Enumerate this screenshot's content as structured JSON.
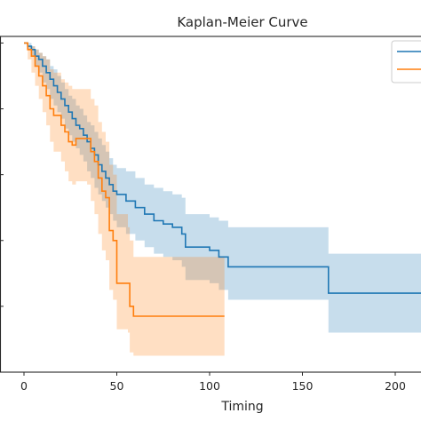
{
  "chart_data": {
    "type": "line",
    "title": "Kaplan-Meier Curve",
    "xlabel": "Timing",
    "ylabel": "",
    "xlim": [
      -12,
      218
    ],
    "ylim": [
      0,
      1.02
    ],
    "x_ticks": [
      0,
      50,
      100,
      150,
      200
    ],
    "x_tick_labels": [
      "0",
      "50",
      "100",
      "150",
      "200"
    ],
    "y_ticks": [
      0.2,
      0.4,
      0.6,
      0.8,
      1.0
    ],
    "grid": false,
    "legend_placement": "top-right",
    "series": [
      {
        "color": "#1f77b4",
        "fill": "#1f77b4",
        "steps": [
          [
            0,
            1.0
          ],
          [
            2,
            0.99
          ],
          [
            4,
            0.98
          ],
          [
            6,
            0.96
          ],
          [
            8,
            0.95
          ],
          [
            10,
            0.93
          ],
          [
            12,
            0.91
          ],
          [
            14,
            0.89
          ],
          [
            16,
            0.87
          ],
          [
            18,
            0.85
          ],
          [
            20,
            0.83
          ],
          [
            22,
            0.81
          ],
          [
            24,
            0.79
          ],
          [
            26,
            0.77
          ],
          [
            28,
            0.75
          ],
          [
            30,
            0.74
          ],
          [
            32,
            0.72
          ],
          [
            34,
            0.7
          ],
          [
            36,
            0.68
          ],
          [
            38,
            0.66
          ],
          [
            40,
            0.63
          ],
          [
            42,
            0.61
          ],
          [
            44,
            0.59
          ],
          [
            46,
            0.57
          ],
          [
            48,
            0.55
          ],
          [
            50,
            0.54
          ],
          [
            55,
            0.52
          ],
          [
            60,
            0.5
          ],
          [
            65,
            0.48
          ],
          [
            70,
            0.46
          ],
          [
            75,
            0.45
          ],
          [
            80,
            0.44
          ],
          [
            85,
            0.42
          ],
          [
            87,
            0.38
          ],
          [
            100,
            0.37
          ],
          [
            105,
            0.35
          ],
          [
            110,
            0.32
          ],
          [
            163,
            0.32
          ],
          [
            164,
            0.24
          ],
          [
            218,
            0.24
          ]
        ],
        "lower": [
          [
            0,
            1.0
          ],
          [
            2,
            0.98
          ],
          [
            4,
            0.96
          ],
          [
            6,
            0.93
          ],
          [
            8,
            0.91
          ],
          [
            10,
            0.88
          ],
          [
            12,
            0.86
          ],
          [
            14,
            0.83
          ],
          [
            16,
            0.81
          ],
          [
            18,
            0.79
          ],
          [
            20,
            0.77
          ],
          [
            22,
            0.74
          ],
          [
            24,
            0.72
          ],
          [
            26,
            0.7
          ],
          [
            28,
            0.68
          ],
          [
            30,
            0.66
          ],
          [
            32,
            0.64
          ],
          [
            34,
            0.61
          ],
          [
            36,
            0.59
          ],
          [
            38,
            0.56
          ],
          [
            40,
            0.54
          ],
          [
            42,
            0.52
          ],
          [
            44,
            0.5
          ],
          [
            46,
            0.48
          ],
          [
            48,
            0.46
          ],
          [
            50,
            0.44
          ],
          [
            55,
            0.42
          ],
          [
            60,
            0.4
          ],
          [
            65,
            0.38
          ],
          [
            70,
            0.36
          ],
          [
            75,
            0.35
          ],
          [
            80,
            0.34
          ],
          [
            85,
            0.32
          ],
          [
            87,
            0.28
          ],
          [
            100,
            0.27
          ],
          [
            105,
            0.25
          ],
          [
            110,
            0.22
          ],
          [
            163,
            0.22
          ],
          [
            164,
            0.12
          ],
          [
            218,
            0.12
          ]
        ],
        "upper": [
          [
            0,
            1.0
          ],
          [
            2,
            1.0
          ],
          [
            4,
            0.99
          ],
          [
            6,
            0.98
          ],
          [
            8,
            0.97
          ],
          [
            10,
            0.96
          ],
          [
            12,
            0.95
          ],
          [
            14,
            0.93
          ],
          [
            16,
            0.92
          ],
          [
            18,
            0.9
          ],
          [
            20,
            0.88
          ],
          [
            22,
            0.86
          ],
          [
            24,
            0.84
          ],
          [
            26,
            0.83
          ],
          [
            28,
            0.81
          ],
          [
            30,
            0.8
          ],
          [
            32,
            0.78
          ],
          [
            34,
            0.76
          ],
          [
            36,
            0.75
          ],
          [
            38,
            0.73
          ],
          [
            40,
            0.71
          ],
          [
            42,
            0.69
          ],
          [
            44,
            0.67
          ],
          [
            46,
            0.65
          ],
          [
            48,
            0.63
          ],
          [
            50,
            0.62
          ],
          [
            55,
            0.61
          ],
          [
            60,
            0.59
          ],
          [
            65,
            0.57
          ],
          [
            70,
            0.56
          ],
          [
            75,
            0.55
          ],
          [
            80,
            0.54
          ],
          [
            85,
            0.53
          ],
          [
            87,
            0.48
          ],
          [
            100,
            0.47
          ],
          [
            105,
            0.46
          ],
          [
            110,
            0.44
          ],
          [
            163,
            0.44
          ],
          [
            164,
            0.36
          ],
          [
            218,
            0.36
          ]
        ]
      },
      {
        "color": "#ff7f0e",
        "fill": "#ff7f0e",
        "steps": [
          [
            0,
            1.0
          ],
          [
            2,
            0.98
          ],
          [
            4,
            0.96
          ],
          [
            6,
            0.93
          ],
          [
            8,
            0.9
          ],
          [
            10,
            0.87
          ],
          [
            12,
            0.84
          ],
          [
            14,
            0.8
          ],
          [
            16,
            0.78
          ],
          [
            20,
            0.75
          ],
          [
            22,
            0.73
          ],
          [
            24,
            0.7
          ],
          [
            26,
            0.69
          ],
          [
            28,
            0.71
          ],
          [
            34,
            0.71
          ],
          [
            36,
            0.67
          ],
          [
            38,
            0.64
          ],
          [
            40,
            0.59
          ],
          [
            42,
            0.55
          ],
          [
            44,
            0.53
          ],
          [
            46,
            0.43
          ],
          [
            48,
            0.4
          ],
          [
            50,
            0.27
          ],
          [
            56,
            0.27
          ],
          [
            57,
            0.2
          ],
          [
            59,
            0.17
          ],
          [
            108,
            0.17
          ]
        ],
        "lower": [
          [
            0,
            1.0
          ],
          [
            2,
            0.95
          ],
          [
            4,
            0.91
          ],
          [
            6,
            0.87
          ],
          [
            8,
            0.83
          ],
          [
            10,
            0.79
          ],
          [
            12,
            0.75
          ],
          [
            14,
            0.7
          ],
          [
            16,
            0.67
          ],
          [
            20,
            0.64
          ],
          [
            22,
            0.61
          ],
          [
            24,
            0.58
          ],
          [
            26,
            0.57
          ],
          [
            28,
            0.58
          ],
          [
            34,
            0.57
          ],
          [
            36,
            0.52
          ],
          [
            38,
            0.48
          ],
          [
            40,
            0.42
          ],
          [
            42,
            0.37
          ],
          [
            44,
            0.34
          ],
          [
            46,
            0.25
          ],
          [
            48,
            0.22
          ],
          [
            50,
            0.13
          ],
          [
            56,
            0.12
          ],
          [
            57,
            0.06
          ],
          [
            59,
            0.05
          ],
          [
            108,
            0.05
          ]
        ],
        "upper": [
          [
            0,
            1.0
          ],
          [
            2,
            0.99
          ],
          [
            4,
            0.99
          ],
          [
            6,
            0.98
          ],
          [
            8,
            0.97
          ],
          [
            10,
            0.96
          ],
          [
            12,
            0.95
          ],
          [
            14,
            0.92
          ],
          [
            16,
            0.91
          ],
          [
            20,
            0.89
          ],
          [
            22,
            0.88
          ],
          [
            24,
            0.87
          ],
          [
            26,
            0.86
          ],
          [
            28,
            0.86
          ],
          [
            34,
            0.86
          ],
          [
            36,
            0.83
          ],
          [
            38,
            0.81
          ],
          [
            40,
            0.76
          ],
          [
            42,
            0.73
          ],
          [
            44,
            0.7
          ],
          [
            46,
            0.63
          ],
          [
            48,
            0.6
          ],
          [
            50,
            0.48
          ],
          [
            56,
            0.44
          ],
          [
            57,
            0.4
          ],
          [
            59,
            0.35
          ],
          [
            108,
            0.35
          ]
        ]
      }
    ]
  }
}
